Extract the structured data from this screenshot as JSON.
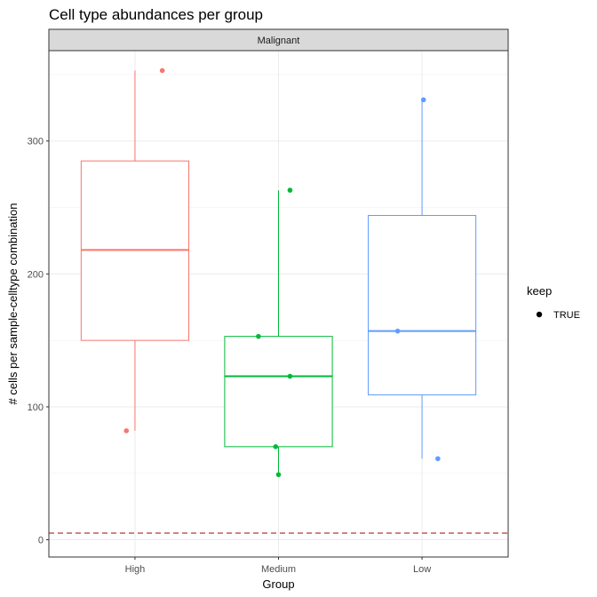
{
  "chart_data": {
    "type": "box",
    "title": "Cell type abundances per group",
    "facet": "Malignant",
    "xlabel": "Group",
    "ylabel": "# cells per sample-celltype combination",
    "categories": [
      "High",
      "Medium",
      "Low"
    ],
    "colors": [
      "#F8766D",
      "#00BA38",
      "#619CFF"
    ],
    "ylim": [
      -13,
      368
    ],
    "yticks": [
      0,
      100,
      200,
      300
    ],
    "reference_line": {
      "y": 5,
      "color": "#B22222",
      "style": "dashed"
    },
    "grid": true,
    "boxes": [
      {
        "category": "High",
        "min": 82,
        "q1": 150,
        "median": 218,
        "q3": 285,
        "max": 353
      },
      {
        "category": "Medium",
        "min": 49,
        "q1": 70,
        "median": 123,
        "q3": 153,
        "max": 263
      },
      {
        "category": "Low",
        "min": 61,
        "q1": 109,
        "median": 157,
        "q3": 244,
        "max": 331
      }
    ],
    "points": [
      {
        "category": "High",
        "jitter": -0.06,
        "y": 82
      },
      {
        "category": "High",
        "jitter": 0.19,
        "y": 353
      },
      {
        "category": "Medium",
        "jitter": -0.14,
        "y": 153
      },
      {
        "category": "Medium",
        "jitter": 0.08,
        "y": 123
      },
      {
        "category": "Medium",
        "jitter": -0.02,
        "y": 70
      },
      {
        "category": "Medium",
        "jitter": 0.0,
        "y": 49
      },
      {
        "category": "Medium",
        "jitter": 0.08,
        "y": 263
      },
      {
        "category": "Low",
        "jitter": 0.01,
        "y": 331
      },
      {
        "category": "Low",
        "jitter": -0.17,
        "y": 157
      },
      {
        "category": "Low",
        "jitter": 0.11,
        "y": 61
      }
    ],
    "legend": {
      "title": "keep",
      "items": [
        {
          "label": "TRUE",
          "shape": "circle",
          "color": "#000000"
        }
      ],
      "position": "right"
    }
  }
}
